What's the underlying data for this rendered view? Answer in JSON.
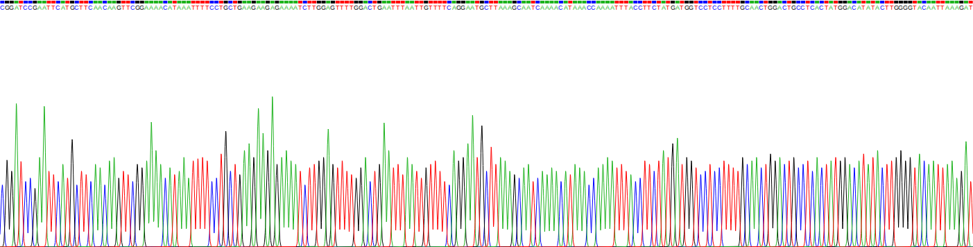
{
  "chart_data": {
    "type": "chromatogram",
    "categories": [
      "C",
      "G",
      "G",
      "A",
      "T",
      "C",
      "C",
      "G",
      "A",
      "A",
      "T",
      "T",
      "C",
      "A",
      "T",
      "G",
      "C",
      "T",
      "T",
      "C",
      "A",
      "A",
      "C",
      "A",
      "A",
      "G",
      "T",
      "T",
      "C",
      "G",
      "G",
      "A",
      "A",
      "A",
      "A",
      "C",
      "A",
      "T",
      "A",
      "A",
      "A",
      "T",
      "T",
      "T",
      "T",
      "C",
      "C",
      "T",
      "G",
      "C",
      "T",
      "G",
      "A",
      "A",
      "G",
      "A",
      "A",
      "G",
      "A",
      "G",
      "A",
      "A",
      "A",
      "A",
      "T",
      "C",
      "T",
      "T",
      "G",
      "G",
      "A",
      "G",
      "T",
      "T",
      "T",
      "T",
      "G",
      "G",
      "A",
      "C",
      "T",
      "G",
      "A",
      "A",
      "T",
      "T",
      "T",
      "A",
      "A",
      "T",
      "T",
      "G",
      "T",
      "T",
      "T",
      "T",
      "C",
      "A",
      "G",
      "G",
      "A",
      "A",
      "T",
      "G",
      "C",
      "T",
      "T",
      "A",
      "A",
      "A",
      "G",
      "C",
      "A",
      "A",
      "T",
      "C",
      "A",
      "A",
      "A",
      "A",
      "C",
      "A",
      "T",
      "A",
      "A",
      "A",
      "C",
      "C",
      "A",
      "A",
      "A",
      "A",
      "T",
      "T",
      "T",
      "A",
      "C",
      "C",
      "T",
      "T",
      "C",
      "T",
      "A",
      "T",
      "G",
      "A",
      "T",
      "G",
      "G",
      "T",
      "C",
      "C",
      "T",
      "C",
      "C",
      "T",
      "T",
      "T",
      "T",
      "G",
      "C",
      "A",
      "A",
      "C",
      "T",
      "G",
      "G",
      "A",
      "C",
      "T",
      "G",
      "C",
      "C",
      "T",
      "C",
      "A",
      "C",
      "T",
      "A",
      "T",
      "G",
      "G",
      "A",
      "C",
      "A",
      "T",
      "A",
      "T",
      "A",
      "C",
      "T",
      "T",
      "G",
      "G",
      "G",
      "G",
      "T",
      "A",
      "C",
      "A",
      "A",
      "T",
      "T",
      "A",
      "A",
      "A",
      "G",
      "A",
      "T"
    ],
    "values": [
      90,
      126,
      110,
      208,
      124,
      95,
      100,
      85,
      130,
      204,
      110,
      105,
      95,
      120,
      100,
      156,
      90,
      110,
      105,
      95,
      120,
      115,
      90,
      125,
      130,
      100,
      110,
      105,
      95,
      120,
      115,
      125,
      181,
      140,
      120,
      100,
      115,
      105,
      110,
      130,
      100,
      125,
      128,
      130,
      125,
      95,
      100,
      135,
      168,
      110,
      120,
      105,
      140,
      150,
      130,
      201,
      165,
      140,
      218,
      120,
      130,
      140,
      125,
      120,
      110,
      90,
      115,
      120,
      125,
      130,
      171,
      120,
      115,
      125,
      110,
      105,
      100,
      115,
      130,
      95,
      110,
      120,
      180,
      140,
      115,
      120,
      105,
      130,
      120,
      110,
      100,
      115,
      120,
      125,
      110,
      95,
      90,
      140,
      125,
      130,
      150,
      191,
      130,
      176,
      110,
      145,
      120,
      130,
      125,
      110,
      105,
      100,
      115,
      120,
      95,
      100,
      110,
      105,
      115,
      110,
      95,
      110,
      105,
      120,
      115,
      110,
      90,
      100,
      115,
      120,
      130,
      125,
      115,
      120,
      110,
      105,
      95,
      100,
      125,
      120,
      110,
      125,
      140,
      130,
      150,
      158,
      120,
      130,
      125,
      115,
      105,
      110,
      120,
      110,
      115,
      125,
      120,
      115,
      110,
      130,
      120,
      125,
      130,
      115,
      120,
      135,
      125,
      130,
      120,
      125,
      130,
      115,
      120,
      125,
      110,
      130,
      115,
      120,
      125,
      130,
      125,
      130,
      120,
      115,
      125,
      135,
      120,
      130,
      140,
      115,
      120,
      125,
      130,
      140,
      125,
      130,
      115,
      135,
      125,
      120,
      125,
      120,
      115,
      120,
      125,
      100,
      110,
      153,
      95
    ],
    "colors": [
      "#0000ff",
      "#000000",
      "#000000",
      "#1db31d",
      "#ff0000",
      "#0000ff",
      "#0000ff",
      "#000000",
      "#1db31d",
      "#1db31d",
      "#ff0000",
      "#ff0000",
      "#0000ff",
      "#1db31d",
      "#ff0000",
      "#000000",
      "#0000ff",
      "#ff0000",
      "#ff0000",
      "#0000ff",
      "#1db31d",
      "#1db31d",
      "#0000ff",
      "#1db31d",
      "#1db31d",
      "#000000",
      "#ff0000",
      "#ff0000",
      "#0000ff",
      "#000000",
      "#000000",
      "#1db31d",
      "#1db31d",
      "#1db31d",
      "#1db31d",
      "#0000ff",
      "#1db31d",
      "#ff0000",
      "#1db31d",
      "#1db31d",
      "#1db31d",
      "#ff0000",
      "#ff0000",
      "#ff0000",
      "#ff0000",
      "#0000ff",
      "#0000ff",
      "#ff0000",
      "#000000",
      "#0000ff",
      "#ff0000",
      "#000000",
      "#1db31d",
      "#1db31d",
      "#000000",
      "#1db31d",
      "#1db31d",
      "#000000",
      "#1db31d",
      "#000000",
      "#1db31d",
      "#1db31d",
      "#1db31d",
      "#1db31d",
      "#ff0000",
      "#0000ff",
      "#ff0000",
      "#ff0000",
      "#000000",
      "#000000",
      "#1db31d",
      "#000000",
      "#ff0000",
      "#ff0000",
      "#ff0000",
      "#ff0000",
      "#000000",
      "#000000",
      "#1db31d",
      "#0000ff",
      "#ff0000",
      "#000000",
      "#1db31d",
      "#1db31d",
      "#ff0000",
      "#ff0000",
      "#ff0000",
      "#1db31d",
      "#1db31d",
      "#ff0000",
      "#ff0000",
      "#000000",
      "#ff0000",
      "#ff0000",
      "#ff0000",
      "#ff0000",
      "#0000ff",
      "#1db31d",
      "#000000",
      "#000000",
      "#1db31d",
      "#1db31d",
      "#ff0000",
      "#000000",
      "#0000ff",
      "#ff0000",
      "#ff0000",
      "#1db31d",
      "#1db31d",
      "#1db31d",
      "#000000",
      "#0000ff",
      "#1db31d",
      "#1db31d",
      "#ff0000",
      "#0000ff",
      "#1db31d",
      "#1db31d",
      "#1db31d",
      "#1db31d",
      "#0000ff",
      "#1db31d",
      "#ff0000",
      "#1db31d",
      "#1db31d",
      "#1db31d",
      "#0000ff",
      "#0000ff",
      "#1db31d",
      "#1db31d",
      "#1db31d",
      "#1db31d",
      "#ff0000",
      "#ff0000",
      "#ff0000",
      "#1db31d",
      "#0000ff",
      "#0000ff",
      "#ff0000",
      "#ff0000",
      "#0000ff",
      "#ff0000",
      "#1db31d",
      "#ff0000",
      "#000000",
      "#1db31d",
      "#ff0000",
      "#000000",
      "#000000",
      "#ff0000",
      "#0000ff",
      "#0000ff",
      "#ff0000",
      "#0000ff",
      "#0000ff",
      "#ff0000",
      "#ff0000",
      "#ff0000",
      "#ff0000",
      "#000000",
      "#0000ff",
      "#1db31d",
      "#1db31d",
      "#0000ff",
      "#ff0000",
      "#000000",
      "#000000",
      "#1db31d",
      "#0000ff",
      "#ff0000",
      "#000000",
      "#0000ff",
      "#0000ff",
      "#ff0000",
      "#0000ff",
      "#1db31d",
      "#0000ff",
      "#ff0000",
      "#1db31d",
      "#ff0000",
      "#000000",
      "#000000",
      "#1db31d",
      "#0000ff",
      "#1db31d",
      "#ff0000",
      "#1db31d",
      "#ff0000",
      "#1db31d",
      "#0000ff",
      "#ff0000",
      "#ff0000",
      "#000000",
      "#000000",
      "#000000",
      "#000000",
      "#ff0000",
      "#1db31d",
      "#0000ff",
      "#1db31d",
      "#1db31d",
      "#ff0000",
      "#ff0000",
      "#1db31d",
      "#1db31d",
      "#1db31d",
      "#000000",
      "#1db31d",
      "#ff0000"
    ],
    "ylim": [
      0,
      340
    ],
    "tick_labels": false
  }
}
